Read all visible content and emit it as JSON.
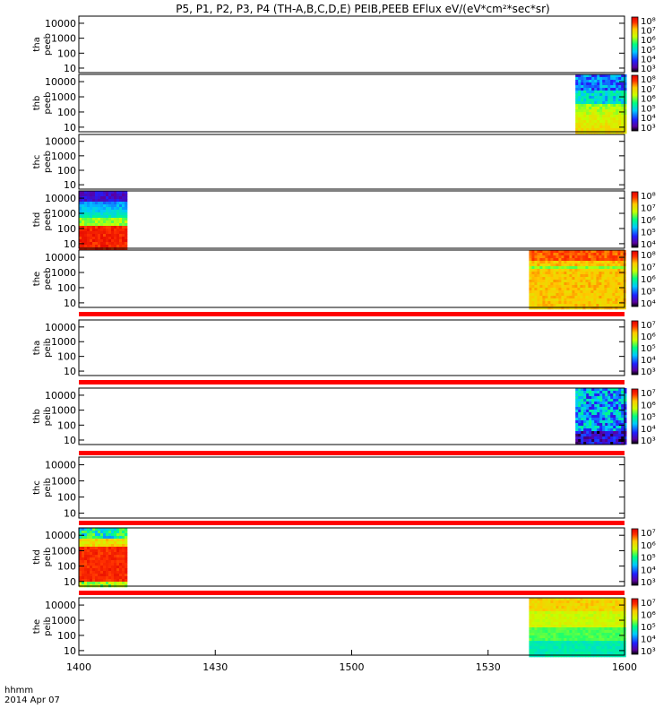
{
  "title": "P5, P1, P2, P3, P4 (TH-A,B,C,D,E) PEIB,PEEB EFlux eV/(eV*cm²*sec*sr)",
  "footer": {
    "hhmm": "hhmm",
    "date": "2014 Apr 07"
  },
  "chart_data": {
    "type": "heatmap",
    "x_ticks": [
      "1400",
      "1430",
      "1500",
      "1530",
      "1600"
    ],
    "x_range": [
      "14:00",
      "16:00"
    ],
    "y_scale": "log",
    "y_tick_labels": [
      "10",
      "100",
      "1000",
      "10000"
    ],
    "panels": [
      {
        "label1": "tha",
        "label2": "peeb",
        "ylim": [
          5,
          30000
        ],
        "cbar": [
          "10³",
          "10⁴",
          "10⁵",
          "10⁶",
          "10⁷",
          "10⁸"
        ],
        "blocks": []
      },
      {
        "label1": "thb",
        "label2": "peeb",
        "ylim": [
          5,
          30000
        ],
        "cbar": [
          "10³",
          "10⁴",
          "10⁵",
          "10⁶",
          "10⁷",
          "10⁸"
        ],
        "blocks": [
          {
            "t0": 15.82,
            "t1": 16.0,
            "type": "thb_peeb"
          }
        ]
      },
      {
        "label1": "thc",
        "label2": "peeb",
        "ylim": [
          5,
          30000
        ],
        "cbar": [],
        "blocks": []
      },
      {
        "label1": "thd",
        "label2": "peeb",
        "ylim": [
          5,
          30000
        ],
        "cbar": [
          "10⁴",
          "10⁵",
          "10⁶",
          "10⁷",
          "10⁸"
        ],
        "blocks": [
          {
            "t0": 14.0,
            "t1": 14.17,
            "type": "thd_peeb"
          }
        ]
      },
      {
        "label1": "the",
        "label2": "peeb",
        "ylim": [
          5,
          30000
        ],
        "cbar": [
          "10⁴",
          "10⁵",
          "10⁶",
          "10⁷",
          "10⁸"
        ],
        "blocks": [
          {
            "t0": 15.65,
            "t1": 16.0,
            "type": "the_peeb"
          }
        ]
      },
      {
        "label1": "tha",
        "label2": "peib",
        "ylim": [
          5,
          30000
        ],
        "cbar": [
          "10³",
          "10⁴",
          "10⁵",
          "10⁶",
          "10⁷"
        ],
        "blocks": []
      },
      {
        "label1": "thb",
        "label2": "peib",
        "ylim": [
          5,
          30000
        ],
        "cbar": [
          "10³",
          "10⁴",
          "10⁵",
          "10⁶",
          "10⁷"
        ],
        "blocks": [
          {
            "t0": 15.82,
            "t1": 16.0,
            "type": "thb_peib"
          }
        ]
      },
      {
        "label1": "thc",
        "label2": "peib",
        "ylim": [
          5,
          30000
        ],
        "cbar": [],
        "blocks": []
      },
      {
        "label1": "thd",
        "label2": "peib",
        "ylim": [
          5,
          30000
        ],
        "cbar": [
          "10³",
          "10⁴",
          "10⁵",
          "10⁶",
          "10⁷"
        ],
        "blocks": [
          {
            "t0": 14.0,
            "t1": 14.17,
            "type": "thd_peib"
          }
        ]
      },
      {
        "label1": "the",
        "label2": "peib",
        "ylim": [
          5,
          30000
        ],
        "cbar": [
          "10³",
          "10⁴",
          "10⁵",
          "10⁶",
          "10⁷"
        ],
        "blocks": [
          {
            "t0": 15.65,
            "t1": 16.0,
            "type": "the_peib"
          }
        ]
      }
    ]
  }
}
